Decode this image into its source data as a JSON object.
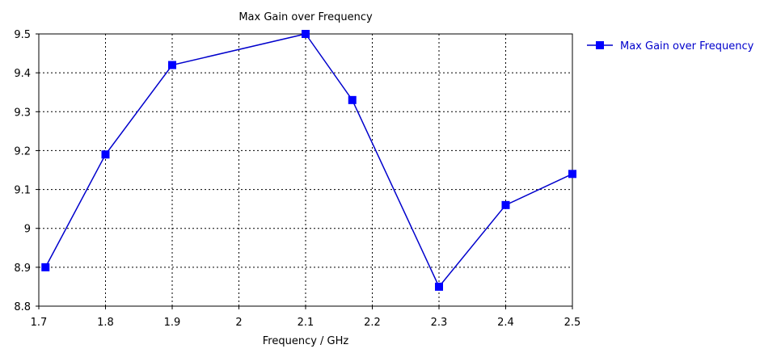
{
  "chart_data": {
    "type": "line",
    "title": "Max Gain over Frequency",
    "xlabel": "Frequency / GHz",
    "ylabel": "",
    "xlim": [
      1.7,
      2.5
    ],
    "ylim": [
      8.8,
      9.5
    ],
    "x_ticks": [
      "1.7",
      "1.8",
      "1.9",
      "2",
      "2.1",
      "2.2",
      "2.3",
      "2.4",
      "2.5"
    ],
    "y_ticks": [
      "8.8",
      "8.9",
      "9",
      "9.1",
      "9.2",
      "9.3",
      "9.4",
      "9.5"
    ],
    "grid": true,
    "legend_position": "right",
    "series": [
      {
        "name": "Max Gain over Frequency",
        "color": "#0000cc",
        "marker": "square",
        "x": [
          1.71,
          1.8,
          1.9,
          2.1,
          2.17,
          2.3,
          2.4,
          2.5
        ],
        "y": [
          8.9,
          9.19,
          9.42,
          9.5,
          9.33,
          8.85,
          9.06,
          9.14
        ]
      }
    ]
  }
}
